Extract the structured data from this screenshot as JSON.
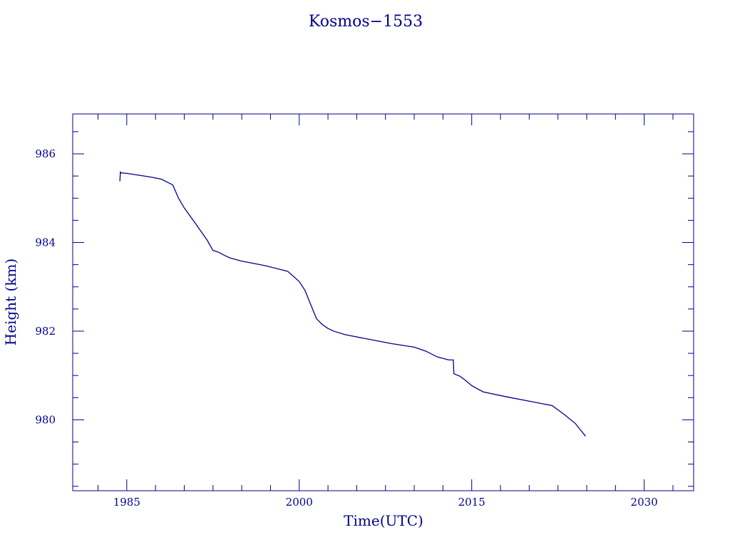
{
  "chart_data": {
    "type": "line",
    "title": "Kosmos−1553",
    "xlabel": "Time(UTC)",
    "ylabel": "Height  (km)",
    "xlim": [
      1980.3,
      2034.3
    ],
    "ylim": [
      978.4,
      986.9
    ],
    "x_major_ticks": [
      1985,
      2000,
      2015,
      2030
    ],
    "x_tick_labels": [
      "1985",
      "2000",
      "2015",
      "2030"
    ],
    "x_minor_step": 2.5,
    "y_major_ticks": [
      980,
      982,
      984,
      986
    ],
    "y_tick_labels": [
      "980",
      "982",
      "984",
      "986"
    ],
    "y_minor_step": 0.5,
    "grid": false,
    "series": [
      {
        "color": "#00008b",
        "x": [
          1984.4,
          1984.45,
          1984.5,
          1985,
          1986,
          1987,
          1988,
          1989.0,
          1989.5,
          1990,
          1991,
          1992,
          1992.5,
          1993.0,
          1993.5,
          1994,
          1995,
          1997,
          1999,
          2000,
          2000.5,
          2001,
          2001.5,
          2002,
          2002.5,
          2003,
          2004,
          2006,
          2008,
          2010,
          2011,
          2012,
          2013.0,
          2013.4,
          2013.45,
          2014,
          2014.5,
          2015,
          2016,
          2018,
          2020,
          2022,
          2023,
          2024,
          2024.9
        ],
        "y": [
          985.38,
          985.6,
          985.57,
          985.56,
          985.52,
          985.48,
          985.43,
          985.3,
          985.0,
          984.78,
          984.42,
          984.05,
          983.82,
          983.78,
          983.71,
          983.65,
          983.58,
          983.48,
          983.35,
          983.12,
          982.92,
          982.6,
          982.28,
          982.15,
          982.06,
          982.0,
          981.92,
          981.82,
          981.72,
          981.64,
          981.55,
          981.42,
          981.35,
          981.35,
          981.04,
          980.98,
          980.88,
          980.77,
          980.63,
          980.52,
          980.42,
          980.32,
          980.13,
          979.92,
          979.63
        ]
      }
    ]
  }
}
